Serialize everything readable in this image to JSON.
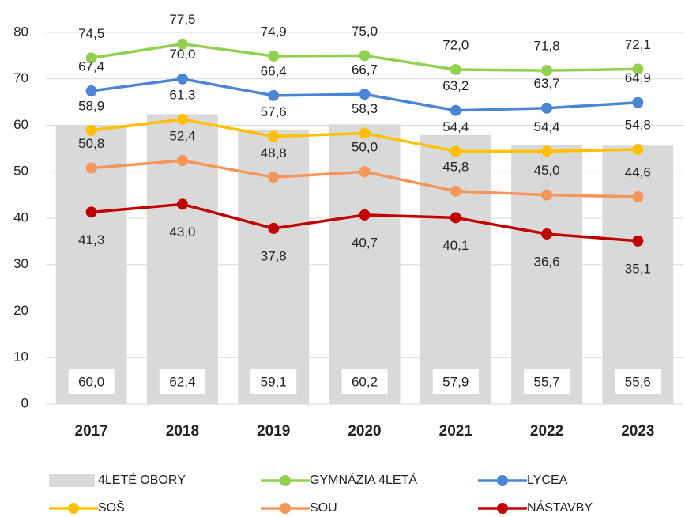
{
  "chart_data": {
    "type": "bar",
    "categories": [
      "2017",
      "2018",
      "2019",
      "2020",
      "2021",
      "2022",
      "2023"
    ],
    "ylim": [
      0,
      80
    ],
    "yticks": [
      0,
      10,
      20,
      30,
      40,
      50,
      60,
      70,
      80
    ],
    "grid": true,
    "series": [
      {
        "name": "4LETÉ OBORY",
        "type": "bar",
        "color": "#d9d9d9",
        "values": [
          60.0,
          62.4,
          59.1,
          60.2,
          57.9,
          55.7,
          55.6
        ],
        "value_labels": [
          "60,0",
          "62,4",
          "59,1",
          "60,2",
          "57,9",
          "55,7",
          "55,6"
        ]
      },
      {
        "name": "GYMNÁZIA 4LETÁ",
        "type": "line",
        "color": "#92d050",
        "label_position": "above",
        "values": [
          74.5,
          77.5,
          74.9,
          75.0,
          72.0,
          71.8,
          72.1
        ],
        "value_labels": [
          "74,5",
          "77,5",
          "74,9",
          "75,0",
          "72,0",
          "71,8",
          "72,1"
        ]
      },
      {
        "name": "LYCEA",
        "type": "line",
        "color": "#4a86d4",
        "label_position": "above",
        "values": [
          67.4,
          70.0,
          66.4,
          66.7,
          63.2,
          63.7,
          64.9
        ],
        "value_labels": [
          "67,4",
          "70,0",
          "66,4",
          "66,7",
          "63,2",
          "63,7",
          "64,9"
        ]
      },
      {
        "name": "SOŠ",
        "type": "line",
        "color": "#ffc000",
        "label_position": "above",
        "values": [
          58.9,
          61.3,
          57.6,
          58.3,
          54.4,
          54.4,
          54.8
        ],
        "value_labels": [
          "58,9",
          "61,3",
          "57,6",
          "58,3",
          "54,4",
          "54,4",
          "54,8"
        ]
      },
      {
        "name": "SOU",
        "type": "line",
        "color": "#f4955a",
        "label_position": "above",
        "values": [
          50.8,
          52.4,
          48.8,
          50.0,
          45.8,
          45.0,
          44.6
        ],
        "value_labels": [
          "50,8",
          "52,4",
          "48,8",
          "50,0",
          "45,8",
          "45,0",
          "44,6"
        ]
      },
      {
        "name": "NÁSTAVBY",
        "type": "line",
        "color": "#c00000",
        "label_position": "below",
        "values": [
          41.3,
          43.0,
          37.8,
          40.7,
          40.1,
          36.6,
          35.1
        ],
        "value_labels": [
          "41,3",
          "43,0",
          "37,8",
          "40,7",
          "40,1",
          "36,6",
          "35,1"
        ]
      }
    ]
  }
}
